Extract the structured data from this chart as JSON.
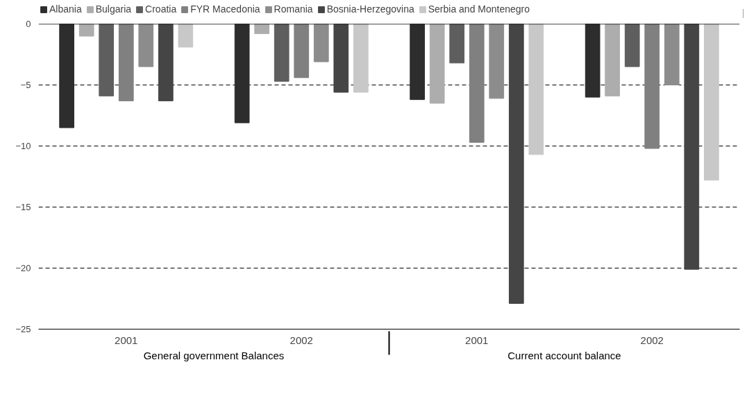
{
  "chart_data": {
    "type": "bar",
    "categories": [
      "2001",
      "2002",
      "2001",
      "2002"
    ],
    "annotations": [
      "General government Balances",
      "Current account balance"
    ],
    "series": [
      {
        "name": "Albania",
        "color": "#2d2d2d",
        "values": [
          -8.5,
          -8.1,
          -6.2,
          -6.0
        ]
      },
      {
        "name": "Bulgaria",
        "color": "#adadad",
        "values": [
          -1.0,
          -0.8,
          -6.5,
          -5.9
        ]
      },
      {
        "name": "Croatia",
        "color": "#5e5e5e",
        "values": [
          -5.9,
          -4.7,
          -3.2,
          -3.5
        ]
      },
      {
        "name": "FYR Macedonia",
        "color": "#808080",
        "values": [
          -6.3,
          -4.4,
          -9.7,
          -10.2
        ]
      },
      {
        "name": "Romania",
        "color": "#8c8c8c",
        "values": [
          -3.5,
          -3.1,
          -6.1,
          -5.0
        ]
      },
      {
        "name": "Bosnia-Herzegovina",
        "color": "#454545",
        "values": [
          -6.3,
          -5.6,
          -22.9,
          -20.1
        ]
      },
      {
        "name": "Serbia and Montenegro",
        "color": "#c8c8c8",
        "values": [
          -1.9,
          -5.6,
          -10.7,
          -12.8
        ]
      }
    ],
    "ylim": [
      -25,
      0
    ],
    "yticks": [
      0,
      -5,
      -10,
      -15,
      -20,
      -25
    ],
    "grid": "y",
    "legend": "top",
    "ref_lines": [
      {
        "axis": "y",
        "value": 0,
        "color": "#000000",
        "line_style": "solid"
      }
    ]
  }
}
